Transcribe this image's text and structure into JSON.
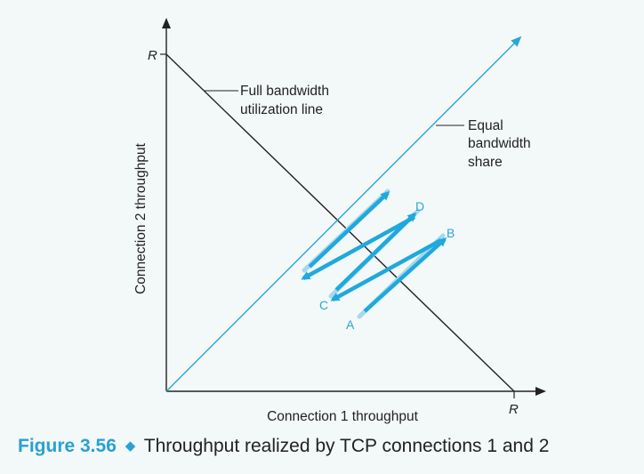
{
  "axes": {
    "x_label": "Connection 1 throughput",
    "y_label": "Connection 2 throughput",
    "x_end_label": "R",
    "y_end_label": "R"
  },
  "lines": {
    "full_bandwidth_label_1": "Full bandwidth",
    "full_bandwidth_label_2": "utilization line",
    "equal_share_label_1": "Equal",
    "equal_share_label_2": "bandwidth",
    "equal_share_label_3": "share"
  },
  "points": {
    "A": "A",
    "B": "B",
    "C": "C",
    "D": "D"
  },
  "caption": {
    "number": "Figure 3.56",
    "text": "Throughput realized by TCP connections 1 and 2"
  },
  "colors": {
    "background": "#f3f9f8",
    "axis": "#222222",
    "equal_share": "#2aa6d9",
    "arrow_dark": "#1fa9dd",
    "arrow_light": "#a6d8ee",
    "point_label": "#2aa6d9",
    "caption_accent": "#2a9fd6"
  }
}
